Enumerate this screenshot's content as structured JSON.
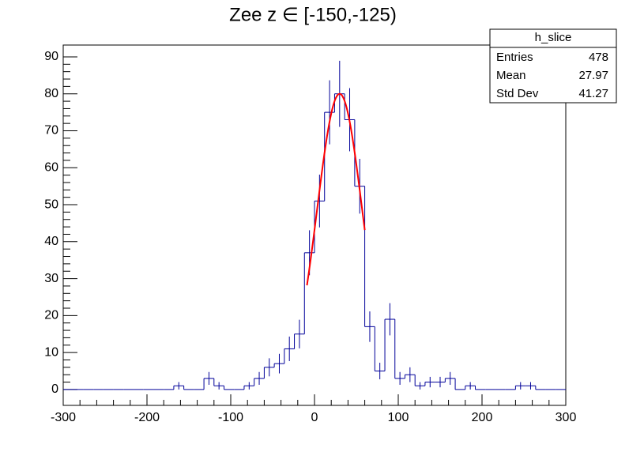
{
  "chart_data": {
    "type": "histogram",
    "title": "Zee z ∈ [-150,-125)",
    "bins": [
      -300,
      -288,
      -276,
      -264,
      -252,
      -240,
      -228,
      -216,
      -204,
      -192,
      -180,
      -168,
      -156,
      -144,
      -132,
      -120,
      -108,
      -96,
      -84,
      -72,
      -60,
      -48,
      -36,
      -24,
      -12,
      0,
      12,
      24,
      36,
      48,
      60,
      72,
      84,
      96,
      108,
      120,
      132,
      144,
      156,
      168,
      180,
      192,
      204,
      216,
      228,
      240,
      252,
      264,
      276,
      288,
      300
    ],
    "values": [
      0,
      0,
      0,
      0,
      0,
      0,
      0,
      0,
      0,
      0,
      0,
      1,
      0,
      0,
      3,
      1,
      0,
      0,
      1,
      3,
      6,
      7,
      11,
      15,
      37,
      51,
      75,
      80,
      73,
      55,
      17,
      5,
      19,
      3,
      4,
      1,
      2,
      2,
      3,
      0,
      1,
      0,
      0,
      0,
      0,
      1,
      1,
      0,
      0,
      0
    ],
    "color": "#000099",
    "fit": {
      "amplitude": 80,
      "mean": 30,
      "sigma": 27,
      "xrange": [
        -9,
        60
      ],
      "color": "#ff0000"
    },
    "xlim": [
      -300,
      300
    ],
    "xticks": [
      -300,
      -200,
      -100,
      0,
      100,
      200,
      300
    ],
    "ylim": [
      -4.3,
      93.2
    ],
    "yticks": [
      0,
      10,
      20,
      30,
      40,
      50,
      60,
      70,
      80,
      90
    ],
    "stats": {
      "title": "h_slice",
      "rows": [
        [
          "Entries",
          478
        ],
        [
          "Mean",
          27.97
        ],
        [
          "Std Dev",
          41.27
        ]
      ]
    }
  }
}
